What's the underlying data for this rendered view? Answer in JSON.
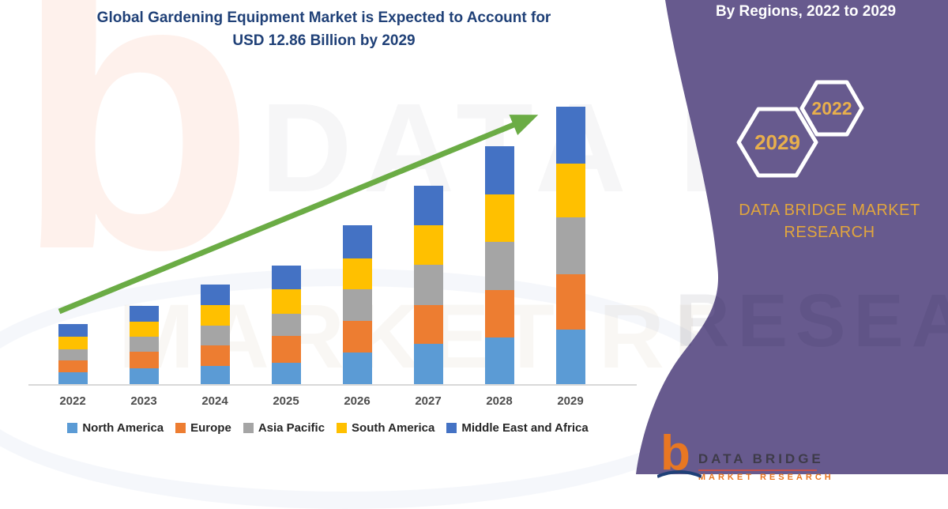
{
  "title": {
    "line1": "Global Gardening Equipment Market is Expected to Account for",
    "line2": "USD 12.86 Billion by 2029"
  },
  "panel": {
    "heading": "By Regions, 2022 to 2029",
    "hexagons": [
      {
        "label": "2029"
      },
      {
        "label": "2022"
      }
    ],
    "brand_line1": "DATA BRIDGE MARKET",
    "brand_line2": "RESEARCH"
  },
  "footer_logo": {
    "b_glyph": "b",
    "brand": "DATA BRIDGE",
    "sub": "MARKET RESEARCH"
  },
  "watermark": {
    "letter": "b",
    "row1": "DATA BRIDGE",
    "row2": "MARKET RESEARCH",
    "panel_fragment": "RESEARCH"
  },
  "colors": {
    "panel_purple": "#675A8E",
    "title_navy": "#1F4077",
    "gold": "#E8AF4C",
    "arrow_green": "#6BAC45",
    "axis_line": "#D9D9D9",
    "hexagon_stroke": "#FFFFFF"
  },
  "chart_data": {
    "type": "bar",
    "subtype": "stacked-vertical",
    "title": "Global Gardening Equipment Market is Expected to Account for USD 12.86 Billion by 2029",
    "unit": "USD Billion",
    "categories": [
      "2022",
      "2023",
      "2024",
      "2025",
      "2026",
      "2027",
      "2028",
      "2029"
    ],
    "series": [
      {
        "name": "North America",
        "color": "#5B9BD5",
        "values": [
          0.57,
          0.76,
          0.88,
          1.04,
          1.5,
          1.9,
          2.2,
          2.57
        ]
      },
      {
        "name": "Europe",
        "color": "#ED7D31",
        "values": [
          0.57,
          0.77,
          0.96,
          1.22,
          1.48,
          1.81,
          2.2,
          2.54
        ]
      },
      {
        "name": "Asia Pacific",
        "color": "#A5A5A5",
        "values": [
          0.51,
          0.7,
          0.89,
          1.04,
          1.46,
          1.86,
          2.23,
          2.65
        ]
      },
      {
        "name": "South America",
        "color": "#FFC000",
        "values": [
          0.57,
          0.71,
          0.98,
          1.13,
          1.42,
          1.84,
          2.2,
          2.5
        ]
      },
      {
        "name": "Middle East and Africa",
        "color": "#4472C4",
        "values": [
          0.59,
          0.73,
          0.92,
          1.11,
          1.53,
          1.81,
          2.22,
          2.61
        ]
      }
    ],
    "totals_estimated": [
      2.81,
      3.67,
      4.63,
      5.54,
      7.39,
      9.22,
      11.05,
      12.86
    ],
    "ylim": [
      0,
      13.1
    ],
    "xlabel": "",
    "ylabel": "",
    "grid": false,
    "y_axis_visible": false,
    "legend_position": "bottom",
    "annotations": [
      "upward green trend arrow across bars"
    ]
  }
}
